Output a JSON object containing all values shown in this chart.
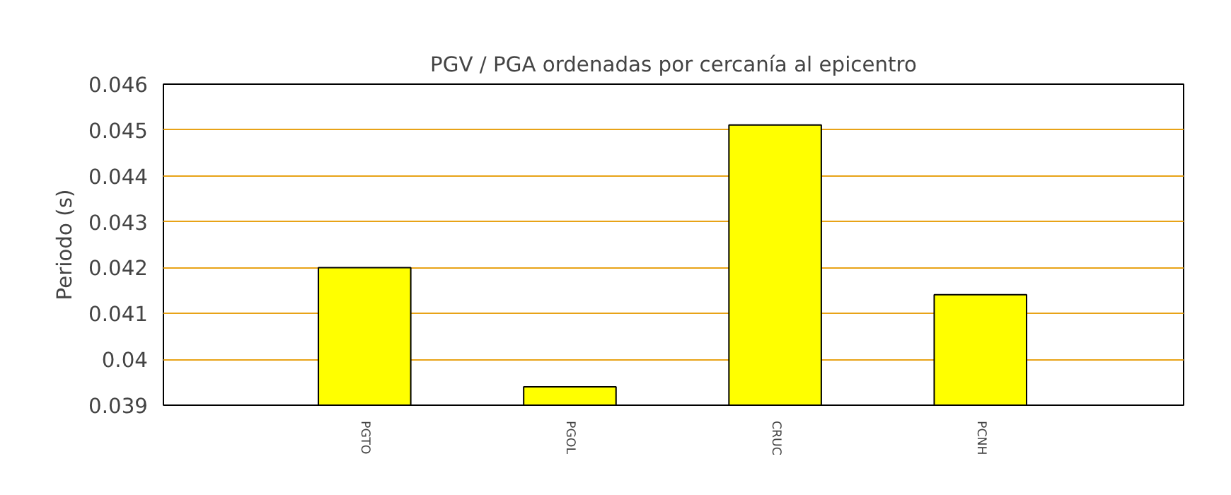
{
  "chart_data": {
    "type": "bar",
    "title": "PGV / PGA ordenadas por cercanía al epicentro",
    "ylabel": "Periodo (s)",
    "categories": [
      "PGTO",
      "PGOL",
      "CRUC",
      "PCNH"
    ],
    "values": [
      0.042,
      0.0394,
      0.04511,
      0.04141
    ],
    "color": "#ffff00",
    "ylim": [
      0.039,
      0.046
    ],
    "yticks": [
      {
        "value": 0.039,
        "label": "0.039"
      },
      {
        "value": 0.04,
        "label": "0.04"
      },
      {
        "value": 0.041,
        "label": "0.041"
      },
      {
        "value": 0.042,
        "label": "0.042"
      },
      {
        "value": 0.043,
        "label": "0.043"
      },
      {
        "value": 0.044,
        "label": "0.044"
      },
      {
        "value": 0.045,
        "label": "0.045"
      },
      {
        "value": 0.046,
        "label": "0.046"
      }
    ],
    "grid": "y"
  }
}
